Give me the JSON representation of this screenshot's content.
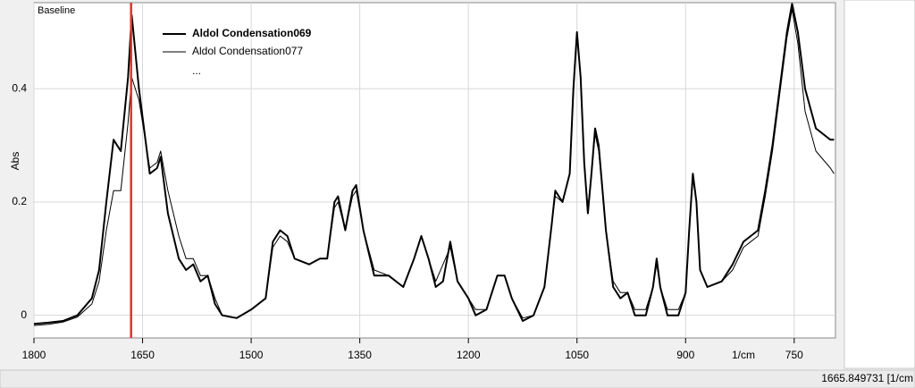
{
  "chart_data": {
    "type": "line",
    "title": "Baseline",
    "y_label": "Abs",
    "x_label": "1/cm",
    "legend_more": "...",
    "cursor": {
      "value": 1665.849731,
      "label": "1665.849731 [1/cm",
      "color": "#e83030"
    },
    "x": [
      1800,
      1780,
      1760,
      1740,
      1720,
      1710,
      1700,
      1690,
      1680,
      1670,
      1665,
      1655,
      1640,
      1630,
      1625,
      1615,
      1600,
      1590,
      1580,
      1570,
      1560,
      1550,
      1540,
      1520,
      1500,
      1480,
      1470,
      1460,
      1450,
      1440,
      1420,
      1405,
      1395,
      1385,
      1380,
      1370,
      1360,
      1355,
      1345,
      1330,
      1310,
      1290,
      1275,
      1265,
      1255,
      1245,
      1235,
      1225,
      1215,
      1200,
      1190,
      1175,
      1160,
      1150,
      1140,
      1125,
      1110,
      1095,
      1085,
      1080,
      1070,
      1060,
      1055,
      1050,
      1045,
      1040,
      1035,
      1030,
      1025,
      1020,
      1010,
      1000,
      990,
      980,
      970,
      955,
      945,
      940,
      935,
      925,
      910,
      900,
      895,
      890,
      885,
      880,
      870,
      850,
      835,
      820,
      810,
      800,
      790,
      780,
      770,
      760,
      753,
      745,
      735,
      720,
      700,
      695
    ],
    "series": [
      {
        "name": "Aldol Condensation069",
        "color": "#000000",
        "width": 2,
        "values": [
          -0.015,
          -0.013,
          -0.01,
          0.0,
          0.03,
          0.08,
          0.2,
          0.31,
          0.29,
          0.42,
          0.53,
          0.4,
          0.25,
          0.26,
          0.28,
          0.18,
          0.1,
          0.08,
          0.09,
          0.06,
          0.07,
          0.02,
          0.0,
          -0.005,
          0.01,
          0.03,
          0.13,
          0.15,
          0.14,
          0.1,
          0.09,
          0.1,
          0.1,
          0.2,
          0.21,
          0.15,
          0.22,
          0.23,
          0.15,
          0.07,
          0.07,
          0.05,
          0.1,
          0.14,
          0.1,
          0.05,
          0.06,
          0.13,
          0.06,
          0.03,
          0.0,
          0.01,
          0.07,
          0.07,
          0.03,
          -0.01,
          0.0,
          0.05,
          0.16,
          0.22,
          0.2,
          0.25,
          0.4,
          0.5,
          0.42,
          0.27,
          0.18,
          0.25,
          0.33,
          0.3,
          0.15,
          0.05,
          0.03,
          0.04,
          0.0,
          0.0,
          0.05,
          0.1,
          0.05,
          0.0,
          0.0,
          0.04,
          0.15,
          0.25,
          0.2,
          0.08,
          0.05,
          0.06,
          0.09,
          0.13,
          0.14,
          0.15,
          0.22,
          0.3,
          0.4,
          0.5,
          0.55,
          0.5,
          0.4,
          0.33,
          0.31,
          0.31
        ]
      },
      {
        "name": "Aldol Condensation077",
        "color": "#000000",
        "width": 1,
        "values": [
          -0.018,
          -0.016,
          -0.012,
          -0.003,
          0.02,
          0.06,
          0.15,
          0.22,
          0.22,
          0.34,
          0.42,
          0.38,
          0.26,
          0.27,
          0.29,
          0.22,
          0.14,
          0.1,
          0.1,
          0.07,
          0.07,
          0.03,
          0.0,
          -0.005,
          0.01,
          0.03,
          0.12,
          0.14,
          0.13,
          0.1,
          0.09,
          0.1,
          0.1,
          0.19,
          0.2,
          0.15,
          0.21,
          0.22,
          0.15,
          0.08,
          0.07,
          0.05,
          0.1,
          0.14,
          0.1,
          0.06,
          0.09,
          0.12,
          0.06,
          0.03,
          0.01,
          0.01,
          0.07,
          0.07,
          0.03,
          -0.005,
          0.0,
          0.05,
          0.16,
          0.21,
          0.2,
          0.25,
          0.39,
          0.5,
          0.42,
          0.27,
          0.19,
          0.25,
          0.32,
          0.29,
          0.15,
          0.06,
          0.04,
          0.04,
          0.01,
          0.01,
          0.05,
          0.09,
          0.05,
          0.01,
          0.01,
          0.04,
          0.15,
          0.24,
          0.2,
          0.08,
          0.05,
          0.06,
          0.08,
          0.12,
          0.13,
          0.14,
          0.21,
          0.29,
          0.39,
          0.49,
          0.54,
          0.48,
          0.36,
          0.29,
          0.26,
          0.25
        ]
      }
    ],
    "xlim": [
      1800,
      693
    ],
    "ylim": [
      -0.04,
      0.552
    ],
    "xticks": [
      1800,
      1650,
      1500,
      1350,
      1200,
      1050,
      900,
      750
    ],
    "yticks": [
      0,
      0.2,
      0.4
    ],
    "grid": true
  }
}
